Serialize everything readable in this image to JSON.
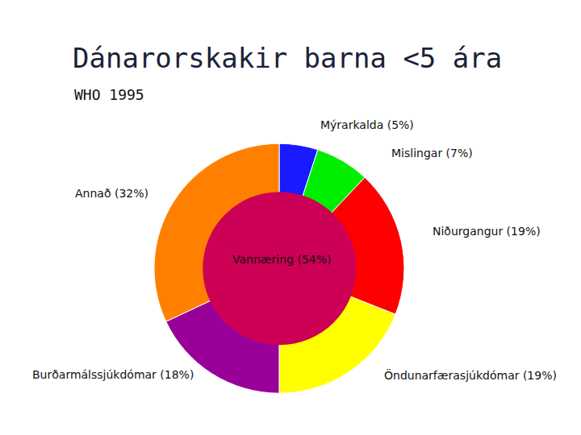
{
  "chart_data": [
    {
      "type": "pie",
      "title": "Dánarorskakir barna <5 ára",
      "subtitle": "WHO 1995",
      "categories": [
        "Mýrarkalda (5%)",
        "Mislingar (7%)",
        "Niðurgangur (19%)",
        "Öndunarfærasjúkdómar (19%)",
        "Burðarmálssjúkdómar (18%)",
        "Annað (32%)"
      ],
      "values": [
        5,
        7,
        19,
        19,
        18,
        32
      ],
      "colors": [
        "#1a1aff",
        "#00ee00",
        "#ff0000",
        "#ffff00",
        "#990099",
        "#ff8000"
      ]
    },
    {
      "type": "pie",
      "categories": [
        "Vannæring (54%)"
      ],
      "values": [
        54
      ],
      "colors": [
        "#cc0055"
      ]
    }
  ]
}
